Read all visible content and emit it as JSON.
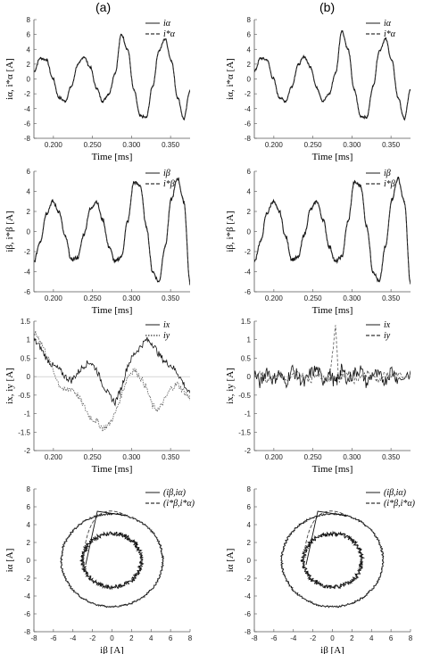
{
  "figure": {
    "col_a_label": "(a)",
    "col_b_label": "(b)"
  },
  "chart_data": [
    {
      "id": "a-alpha",
      "type": "line",
      "col": 0,
      "row": 0,
      "shape": "growing",
      "xlabel": "Time [ms]",
      "ylabel": "iα, i*α [A]",
      "xlim": [
        0.175,
        0.375
      ],
      "ylim": [
        -8,
        8
      ],
      "xticks": [
        "0.200",
        "0.250",
        "0.300",
        "0.350"
      ],
      "xtick_values": [
        0.2,
        0.25,
        0.3,
        0.35
      ],
      "yticks": [
        -8,
        -6,
        -4,
        -2,
        0,
        2,
        4,
        6,
        8
      ],
      "series": [
        {
          "name": "iα",
          "style": "solid"
        },
        {
          "name": "i*α",
          "style": "dashed"
        }
      ],
      "x": [
        0.175,
        0.183,
        0.191,
        0.199,
        0.207,
        0.215,
        0.223,
        0.231,
        0.239,
        0.247,
        0.255,
        0.263,
        0.271,
        0.279,
        0.287,
        0.295,
        0.303,
        0.311,
        0.319,
        0.327,
        0.335,
        0.343,
        0.351,
        0.359,
        0.367,
        0.375
      ],
      "values": [
        1.0,
        2.8,
        2.6,
        0.1,
        -2.5,
        -3.0,
        -1.0,
        1.9,
        3.0,
        1.6,
        -1.2,
        -3.0,
        -2.0,
        0.8,
        6.0,
        4.0,
        -1.5,
        -5.0,
        -5.2,
        -1.0,
        3.8,
        5.4,
        2.5,
        -2.5,
        -5.4,
        -1.5
      ]
    },
    {
      "id": "b-alpha",
      "type": "line",
      "col": 1,
      "row": 0,
      "shape": "growing",
      "xlabel": "Time [ms]",
      "ylabel": "iα, i*α [A]",
      "xlim": [
        0.175,
        0.375
      ],
      "ylim": [
        -8,
        8
      ],
      "xticks": [
        "0.200",
        "0.250",
        "0.300",
        "0.350"
      ],
      "xtick_values": [
        0.2,
        0.25,
        0.3,
        0.35
      ],
      "yticks": [
        -8,
        -6,
        -4,
        -2,
        0,
        2,
        4,
        6,
        8
      ],
      "series": [
        {
          "name": "iα",
          "style": "solid"
        },
        {
          "name": "i*α",
          "style": "dashed"
        }
      ],
      "x": [
        0.175,
        0.183,
        0.191,
        0.199,
        0.207,
        0.215,
        0.223,
        0.231,
        0.239,
        0.247,
        0.255,
        0.263,
        0.271,
        0.279,
        0.287,
        0.295,
        0.303,
        0.311,
        0.319,
        0.327,
        0.335,
        0.343,
        0.351,
        0.359,
        0.367,
        0.375
      ],
      "values": [
        1.0,
        2.8,
        2.6,
        0.1,
        -2.5,
        -3.0,
        -1.0,
        1.9,
        3.0,
        1.6,
        -1.2,
        -3.0,
        -2.0,
        0.8,
        6.5,
        4.0,
        -1.5,
        -5.0,
        -5.2,
        -1.0,
        3.8,
        5.4,
        2.5,
        -2.5,
        -5.4,
        -1.5
      ]
    },
    {
      "id": "a-beta",
      "type": "line",
      "col": 0,
      "row": 1,
      "shape": "growing",
      "xlabel": "Time [ms]",
      "ylabel": "iβ, i*β [A]",
      "xlim": [
        0.175,
        0.375
      ],
      "ylim": [
        -6,
        6
      ],
      "xticks": [
        "0.200",
        "0.250",
        "0.300",
        "0.350"
      ],
      "xtick_values": [
        0.2,
        0.25,
        0.3,
        0.35
      ],
      "yticks": [
        -6,
        -4,
        -2,
        0,
        2,
        4,
        6
      ],
      "series": [
        {
          "name": "iβ",
          "style": "solid"
        },
        {
          "name": "i*β",
          "style": "dashed"
        }
      ],
      "x": [
        0.175,
        0.183,
        0.191,
        0.199,
        0.207,
        0.215,
        0.223,
        0.231,
        0.239,
        0.247,
        0.255,
        0.263,
        0.271,
        0.279,
        0.287,
        0.295,
        0.303,
        0.311,
        0.319,
        0.327,
        0.335,
        0.343,
        0.351,
        0.359,
        0.367,
        0.375
      ],
      "values": [
        -3.0,
        -1.0,
        1.8,
        3.0,
        2.0,
        -0.5,
        -2.8,
        -2.6,
        -0.3,
        2.2,
        3.0,
        1.2,
        -1.5,
        -3.0,
        -2.5,
        1.0,
        4.9,
        4.6,
        0.5,
        -4.0,
        -5.0,
        -1.5,
        3.2,
        5.3,
        3.0,
        -5.2
      ]
    },
    {
      "id": "b-beta",
      "type": "line",
      "col": 1,
      "row": 1,
      "shape": "growing",
      "xlabel": "Time [ms]",
      "ylabel": "iβ, i*β [A]",
      "xlim": [
        0.175,
        0.375
      ],
      "ylim": [
        -6,
        6
      ],
      "xticks": [
        "0.200",
        "0.250",
        "0.300",
        "0.350"
      ],
      "xtick_values": [
        0.2,
        0.25,
        0.3,
        0.35
      ],
      "yticks": [
        -6,
        -4,
        -2,
        0,
        2,
        4,
        6
      ],
      "series": [
        {
          "name": "iβ",
          "style": "solid"
        },
        {
          "name": "i*β",
          "style": "dashed"
        }
      ],
      "x": [
        0.175,
        0.183,
        0.191,
        0.199,
        0.207,
        0.215,
        0.223,
        0.231,
        0.239,
        0.247,
        0.255,
        0.263,
        0.271,
        0.279,
        0.287,
        0.295,
        0.303,
        0.311,
        0.319,
        0.327,
        0.335,
        0.343,
        0.351,
        0.359,
        0.367,
        0.375
      ],
      "values": [
        -3.0,
        -1.0,
        1.8,
        3.0,
        2.0,
        -0.5,
        -2.8,
        -2.6,
        -0.3,
        2.2,
        3.0,
        1.2,
        -1.5,
        -3.0,
        -2.5,
        1.0,
        4.9,
        4.6,
        0.5,
        -4.0,
        -5.0,
        -1.5,
        3.2,
        5.3,
        3.0,
        -5.2
      ]
    },
    {
      "id": "a-xy",
      "type": "line",
      "col": 0,
      "row": 2,
      "shape": "free",
      "xlabel": "Time [ms]",
      "ylabel": "ix, iy [A]",
      "xlim": [
        0.175,
        0.375
      ],
      "ylim": [
        -2,
        1.5
      ],
      "xticks": [
        "0.200",
        "0.250",
        "0.300",
        "0.350"
      ],
      "xtick_values": [
        0.2,
        0.25,
        0.3,
        0.35
      ],
      "yticks": [
        -2,
        -1.5,
        -1,
        -0.5,
        0,
        0.5,
        1,
        1.5
      ],
      "series": [
        {
          "name": "ix",
          "style": "solid",
          "values": [
            1.0,
            0.8,
            0.5,
            0.3,
            0.2,
            0.0,
            -0.1,
            0.1,
            0.3,
            0.4,
            0.2,
            -0.2,
            -0.5,
            -0.7,
            -0.3,
            0.3,
            0.6,
            0.8,
            1.0,
            0.9,
            0.6,
            0.4,
            0.3,
            0.1,
            -0.2,
            -0.5
          ]
        },
        {
          "name": "iy",
          "style": "dotted",
          "values": [
            1.2,
            1.0,
            0.6,
            0.2,
            -0.2,
            -0.4,
            -0.3,
            -0.5,
            -0.8,
            -1.1,
            -1.2,
            -1.4,
            -1.3,
            -1.0,
            -0.5,
            0.0,
            0.2,
            0.0,
            -0.3,
            -0.8,
            -0.9,
            -0.6,
            -0.3,
            -0.2,
            -0.4,
            -0.6
          ]
        }
      ],
      "x": [
        0.175,
        0.183,
        0.191,
        0.199,
        0.207,
        0.215,
        0.223,
        0.231,
        0.239,
        0.247,
        0.255,
        0.263,
        0.271,
        0.279,
        0.287,
        0.295,
        0.303,
        0.311,
        0.319,
        0.327,
        0.335,
        0.343,
        0.351,
        0.359,
        0.367,
        0.375
      ]
    },
    {
      "id": "b-xy",
      "type": "line",
      "col": 1,
      "row": 2,
      "shape": "free",
      "xlabel": "Time [ms]",
      "ylabel": "ix, iy [A]",
      "xlim": [
        0.175,
        0.375
      ],
      "ylim": [
        -2,
        1.5
      ],
      "xticks": [
        "0.200",
        "0.250",
        "0.300",
        "0.350"
      ],
      "xtick_values": [
        0.2,
        0.25,
        0.3,
        0.35
      ],
      "yticks": [
        -2,
        -1.5,
        -1,
        -0.5,
        0,
        0.5,
        1,
        1.5
      ],
      "series": [
        {
          "name": "ix",
          "style": "solid",
          "values": [
            0.1,
            -0.2,
            0.2,
            -0.1,
            0.1,
            -0.2,
            0.2,
            0.0,
            -0.2,
            0.1,
            0.2,
            -0.1,
            0.1,
            -0.2,
            0.0,
            0.2,
            -0.1,
            0.1,
            0.2,
            -0.2,
            0.1,
            0.0,
            -0.1,
            0.2,
            -0.1,
            0.1
          ]
        },
        {
          "name": "iy",
          "style": "dashed",
          "values": [
            0.0,
            0.1,
            -0.1,
            0.0,
            0.1,
            -0.1,
            0.0,
            0.1,
            0.0,
            -0.1,
            0.1,
            0.0,
            -0.1,
            1.4,
            -0.1,
            0.0,
            0.1,
            -0.1,
            0.0,
            0.1,
            0.0,
            -0.1,
            0.1,
            0.0,
            0.1,
            -0.1
          ]
        }
      ],
      "x": [
        0.175,
        0.183,
        0.191,
        0.199,
        0.207,
        0.215,
        0.223,
        0.231,
        0.239,
        0.247,
        0.255,
        0.263,
        0.271,
        0.279,
        0.283,
        0.287,
        0.295,
        0.303,
        0.311,
        0.319,
        0.327,
        0.335,
        0.343,
        0.351,
        0.359,
        0.375
      ]
    },
    {
      "id": "a-orbit",
      "type": "scatter",
      "col": 0,
      "row": 3,
      "shape": "orbit",
      "xlabel": "iβ [A]",
      "ylabel": "iα [A]",
      "xlim": [
        -8,
        8
      ],
      "ylim": [
        -8,
        8
      ],
      "xticks": [
        "-8",
        "-6",
        "-4",
        "-2",
        "0",
        "2",
        "4",
        "6",
        "8"
      ],
      "xtick_values": [
        -8,
        -6,
        -4,
        -2,
        0,
        2,
        4,
        6,
        8
      ],
      "yticks": [
        -8,
        -6,
        -4,
        -2,
        0,
        2,
        4,
        6,
        8
      ],
      "series": [
        {
          "name": "(iβ,iα)",
          "style": "solid"
        },
        {
          "name": "(i*β,i*α)",
          "style": "dashed"
        }
      ],
      "orbits": [
        {
          "radius": 3.0
        },
        {
          "radius": 5.2
        }
      ],
      "transition": {
        "from": [
          -3.0,
          -0.5
        ],
        "peak": [
          -1.0,
          6.3
        ],
        "to": [
          1.5,
          5.0
        ]
      }
    },
    {
      "id": "b-orbit",
      "type": "scatter",
      "col": 1,
      "row": 3,
      "shape": "orbit",
      "xlabel": "iβ [A]",
      "ylabel": "iα [A]",
      "xlim": [
        -8,
        8
      ],
      "ylim": [
        -8,
        8
      ],
      "xticks": [
        "-8",
        "-6",
        "-4",
        "-2",
        "0",
        "2",
        "4",
        "6",
        "8"
      ],
      "xtick_values": [
        -8,
        -6,
        -4,
        -2,
        0,
        2,
        4,
        6,
        8
      ],
      "yticks": [
        -8,
        -6,
        -4,
        -2,
        0,
        2,
        4,
        6,
        8
      ],
      "series": [
        {
          "name": "(iβ,iα)",
          "style": "solid"
        },
        {
          "name": "(i*β,i*α)",
          "style": "dashed"
        }
      ],
      "orbits": [
        {
          "radius": 3.0
        },
        {
          "radius": 5.2
        }
      ],
      "transition": {
        "from": [
          -3.0,
          -0.5
        ],
        "peak": [
          -1.0,
          6.3
        ],
        "to": [
          1.5,
          5.0
        ]
      }
    }
  ]
}
